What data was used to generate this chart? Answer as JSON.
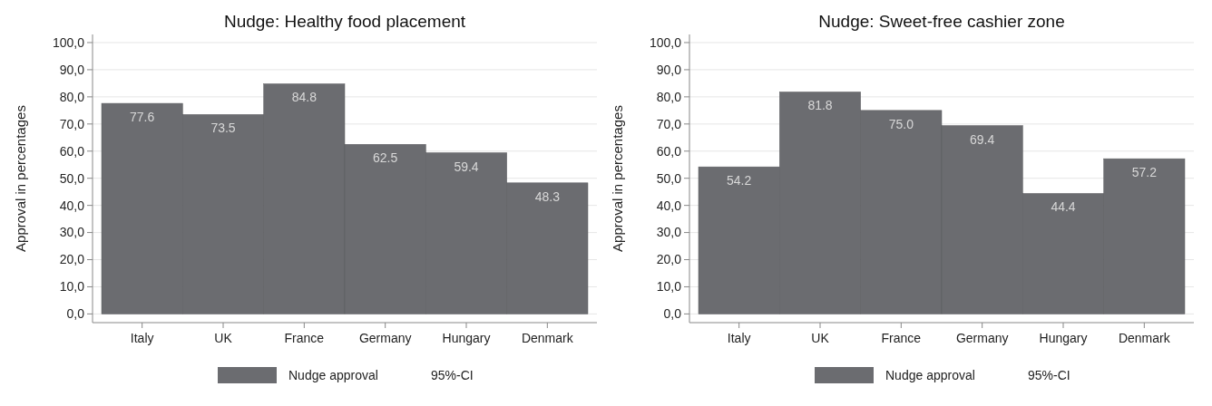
{
  "chart_data": [
    {
      "type": "bar",
      "title": "Nudge: Healthy food placement",
      "ylabel": "Approval in percentages",
      "categories": [
        "Italy",
        "UK",
        "France",
        "Germany",
        "Hungary",
        "Denmark"
      ],
      "series": [
        {
          "name": "Nudge approval",
          "color": "#6b6c70",
          "values": [
            77.6,
            73.5,
            84.8,
            62.5,
            59.4,
            48.3
          ],
          "value_labels": [
            "77.6",
            "73.5",
            "84.8",
            "62.5",
            "59.4",
            "48.3"
          ]
        }
      ],
      "ylim": [
        -3.2,
        103
      ],
      "yticks": [
        {
          "value": 0,
          "label": "0,0"
        },
        {
          "value": 10,
          "label": "10,0"
        },
        {
          "value": 20,
          "label": "20,0"
        },
        {
          "value": 30,
          "label": "30,0"
        },
        {
          "value": 40,
          "label": "40,0"
        },
        {
          "value": 50,
          "label": "50,0"
        },
        {
          "value": 60,
          "label": "60,0"
        },
        {
          "value": 70,
          "label": "70,0"
        },
        {
          "value": 80,
          "label": "80,0"
        },
        {
          "value": 90,
          "label": "90,0"
        },
        {
          "value": 100,
          "label": "100,0"
        }
      ],
      "grid": "y",
      "legend": "bottom",
      "annotations": [
        "95%-CI"
      ]
    },
    {
      "type": "bar",
      "title": "Nudge: Sweet-free cashier zone",
      "ylabel": "Approval in percentages",
      "categories": [
        "Italy",
        "UK",
        "France",
        "Germany",
        "Hungary",
        "Denmark"
      ],
      "series": [
        {
          "name": "Nudge approval",
          "color": "#6b6c70",
          "values": [
            54.2,
            81.8,
            75.0,
            69.4,
            44.4,
            57.2
          ],
          "value_labels": [
            "54.2",
            "81.8",
            "75.0",
            "69.4",
            "44.4",
            "57.2"
          ]
        }
      ],
      "ylim": [
        -3.2,
        103
      ],
      "yticks": [
        {
          "value": 0,
          "label": "0,0"
        },
        {
          "value": 10,
          "label": "10,0"
        },
        {
          "value": 20,
          "label": "20,0"
        },
        {
          "value": 30,
          "label": "30,0"
        },
        {
          "value": 40,
          "label": "40,0"
        },
        {
          "value": 50,
          "label": "50,0"
        },
        {
          "value": 60,
          "label": "60,0"
        },
        {
          "value": 70,
          "label": "70,0"
        },
        {
          "value": 80,
          "label": "80,0"
        },
        {
          "value": 90,
          "label": "90,0"
        },
        {
          "value": 100,
          "label": "100,0"
        }
      ],
      "grid": "y",
      "legend": "bottom",
      "annotations": [
        "95%-CI"
      ]
    }
  ]
}
